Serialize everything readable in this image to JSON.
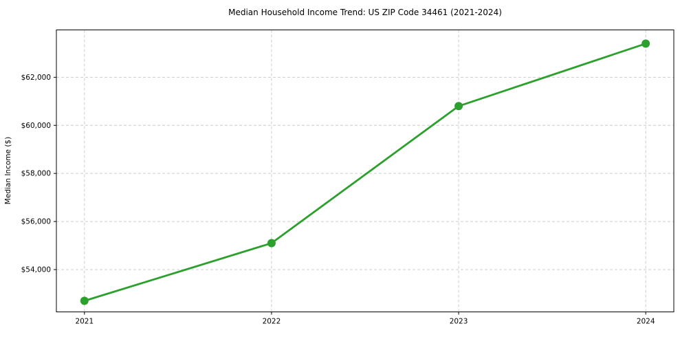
{
  "chart_data": {
    "type": "line",
    "title": "Median Household Income Trend: US ZIP Code 34461 (2021-2024)",
    "categories": [
      "2021",
      "2022",
      "2023",
      "2024"
    ],
    "series": [
      {
        "name": "Median Household Income",
        "values": [
          52700,
          55100,
          60800,
          63400
        ],
        "color": "#2ca02c",
        "marker": "circle"
      }
    ],
    "xlabel": "",
    "ylabel": "Median Income ($)",
    "ylim": [
      52240,
      63970
    ],
    "yticks": [
      54000,
      56000,
      58000,
      60000,
      62000
    ],
    "ytick_labels": [
      "$54,000",
      "$56,000",
      "$58,000",
      "$60,000",
      "$62,000"
    ],
    "grid": true,
    "grid_style": "dashed",
    "grid_color": "#cccccc",
    "axis_color": "#000000",
    "text_color": "#000000",
    "background_color": "#ffffff",
    "legend": false
  }
}
